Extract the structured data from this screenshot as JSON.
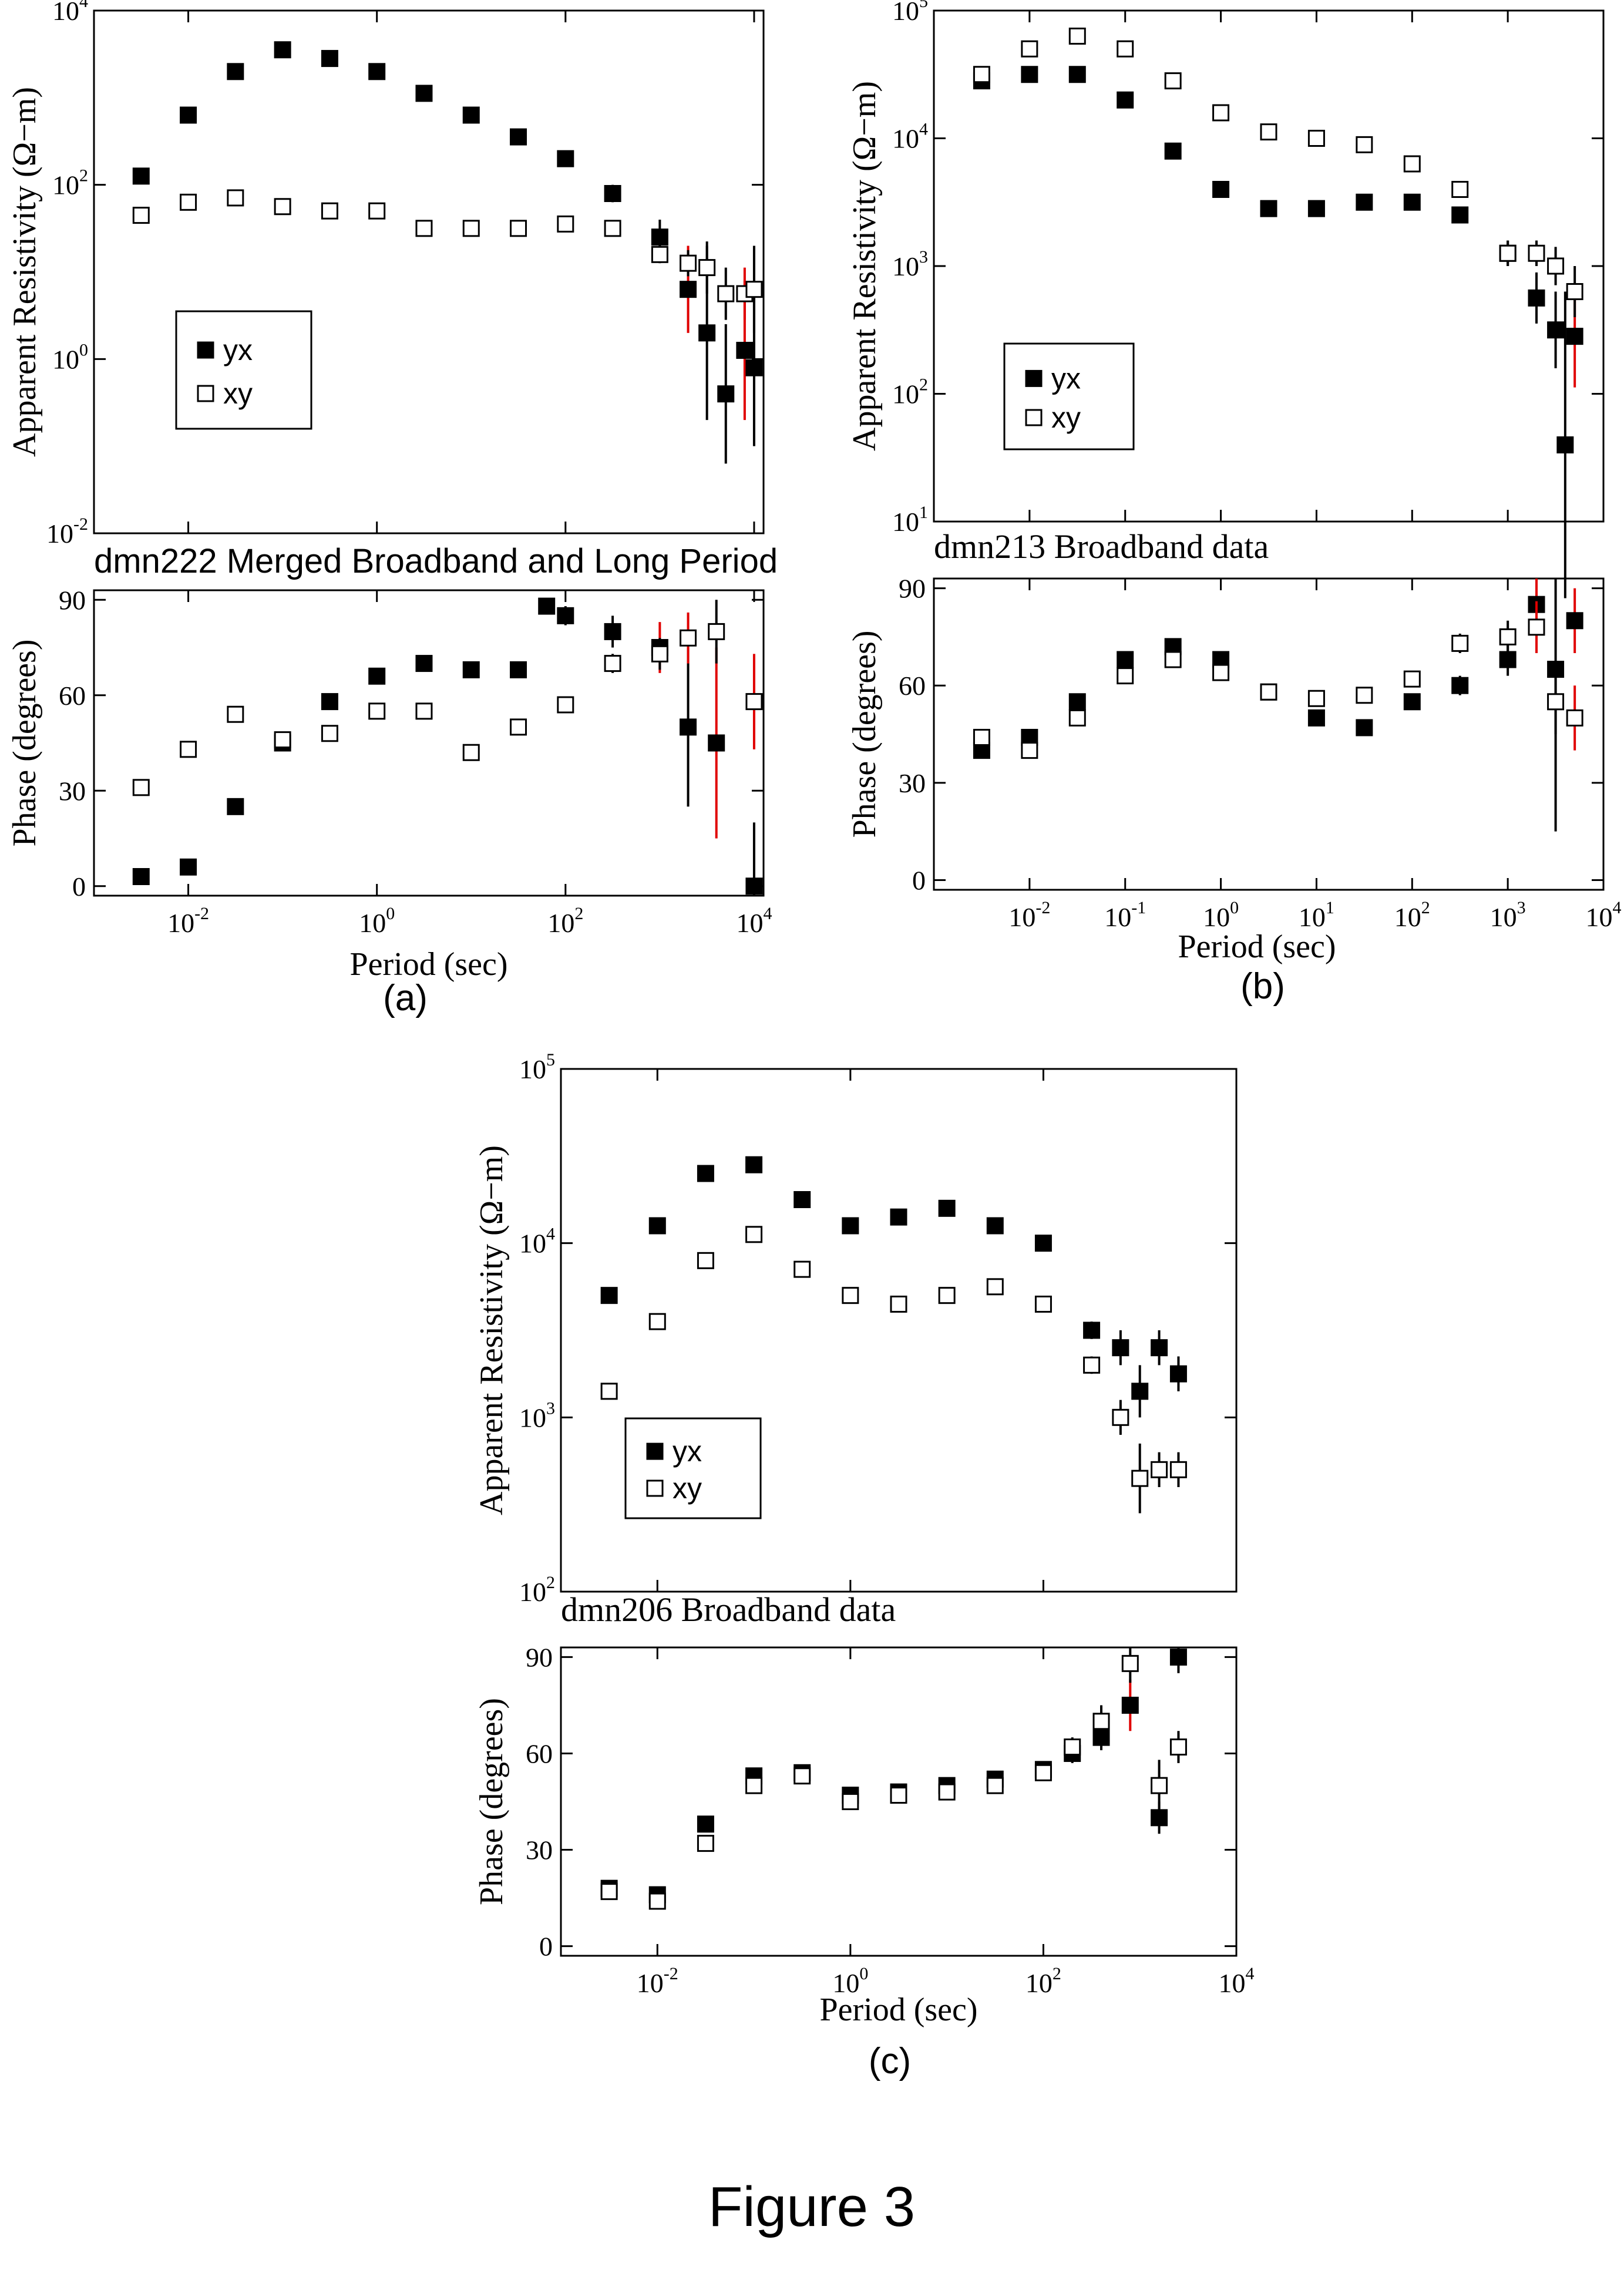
{
  "figure_caption": "Figure 3",
  "legend": {
    "yx": "yx",
    "xy": "xy"
  },
  "colors": {
    "yx_fill": "#000000",
    "xy_fill": "#ffffff",
    "marker_edge": "#000000",
    "error_bar": "#000000",
    "error_bar_alt": "#e00000"
  },
  "chart_data": [
    {
      "id": "a",
      "sub_label": "(a)",
      "title": "dmn222 Merged Broadband and Long Period",
      "xlabel": "Period (sec)",
      "xscale": "log",
      "xlim_log10": [
        -3.0,
        4.1
      ],
      "x_ticks": [
        {
          "base": "10",
          "exp": "-2"
        },
        {
          "base": "10",
          "exp": "0"
        },
        {
          "base": "10",
          "exp": "2"
        },
        {
          "base": "10",
          "exp": "4"
        }
      ],
      "rho": {
        "type": "scatter",
        "ylabel": "Apparent Resistivity (Ω−m)",
        "yscale": "log",
        "ylim_log10": [
          -2,
          4
        ],
        "y_ticks": [
          {
            "base": "10",
            "exp": "-2"
          },
          {
            "base": "10",
            "exp": "0"
          },
          {
            "base": "10",
            "exp": "2"
          },
          {
            "base": "10",
            "exp": "4"
          }
        ],
        "legend_position": "lower-left",
        "series": [
          {
            "name": "yx",
            "marker": "filled-square",
            "x_log10": [
              -2.5,
              -2.0,
              -1.5,
              -1.0,
              -0.5,
              0.0,
              0.5,
              1.0,
              1.5,
              2.0,
              2.5,
              3.0,
              3.3,
              3.5,
              3.7,
              3.9,
              4.0
            ],
            "y_log10": [
              2.1,
              2.8,
              3.3,
              3.55,
              3.45,
              3.3,
              3.05,
              2.8,
              2.55,
              2.3,
              1.9,
              1.4,
              0.8,
              0.3,
              -0.4,
              0.1,
              -0.1
            ],
            "err_log10": [
              0.05,
              0.05,
              0.05,
              0.05,
              0.05,
              0.05,
              0.05,
              0.05,
              0.05,
              0.05,
              0.1,
              0.2,
              0.5,
              1.0,
              0.8,
              0.8,
              0.9
            ]
          },
          {
            "name": "xy",
            "marker": "open-square",
            "x_log10": [
              -2.5,
              -2.0,
              -1.5,
              -1.0,
              -0.5,
              0.0,
              0.5,
              1.0,
              1.5,
              2.0,
              2.5,
              3.0,
              3.3,
              3.5,
              3.7,
              3.9,
              4.0
            ],
            "y_log10": [
              1.65,
              1.8,
              1.85,
              1.75,
              1.7,
              1.7,
              1.5,
              1.5,
              1.5,
              1.55,
              1.5,
              1.2,
              1.1,
              1.05,
              0.75,
              0.75,
              0.8
            ],
            "err_log10": [
              0.03,
              0.03,
              0.03,
              0.03,
              0.03,
              0.03,
              0.03,
              0.03,
              0.03,
              0.03,
              0.05,
              0.1,
              0.15,
              0.3,
              0.3,
              0.3,
              0.5
            ]
          }
        ]
      },
      "phase": {
        "type": "scatter",
        "ylabel": "Phase (degrees)",
        "yscale": "linear",
        "ylim": [
          -3,
          93
        ],
        "y_ticks": [
          "0",
          "30",
          "60",
          "90"
        ],
        "series": [
          {
            "name": "yx",
            "marker": "filled-square",
            "x_log10": [
              -2.5,
              -2.0,
              -1.5,
              -1.0,
              -0.5,
              0.0,
              0.5,
              1.0,
              1.5,
              1.8,
              2.0,
              2.5,
              3.0,
              3.3,
              3.6,
              4.0
            ],
            "y": [
              3,
              6,
              25,
              45,
              58,
              66,
              70,
              68,
              68,
              88,
              85,
              80,
              75,
              50,
              45,
              0
            ],
            "err": [
              1,
              1,
              1,
              1,
              1,
              1,
              1,
              1,
              2,
              2,
              3,
              5,
              8,
              25,
              30,
              20
            ]
          },
          {
            "name": "xy",
            "marker": "open-square",
            "x_log10": [
              -2.5,
              -2.0,
              -1.5,
              -1.0,
              -0.5,
              0.0,
              0.5,
              1.0,
              1.5,
              2.0,
              2.5,
              3.0,
              3.3,
              3.6,
              4.0
            ],
            "y": [
              31,
              43,
              54,
              46,
              48,
              55,
              55,
              42,
              50,
              57,
              70,
              73,
              78,
              80,
              58
            ],
            "err": [
              1,
              1,
              1,
              1,
              1,
              1,
              1,
              1,
              1,
              2,
              3,
              5,
              8,
              10,
              15
            ]
          }
        ]
      }
    },
    {
      "id": "b",
      "sub_label": "(b)",
      "title": "dmn213 Broadband data",
      "xlabel": "Period (sec)",
      "xscale": "log",
      "xlim_log10": [
        -3.0,
        4.0
      ],
      "x_ticks": [
        {
          "base": "10",
          "exp": "-2"
        },
        {
          "base": "10",
          "exp": "-1"
        },
        {
          "base": "10",
          "exp": "0"
        },
        {
          "base": "10",
          "exp": "1"
        },
        {
          "base": "10",
          "exp": "2"
        },
        {
          "base": "10",
          "exp": "3"
        },
        {
          "base": "10",
          "exp": "4"
        }
      ],
      "rho": {
        "type": "scatter",
        "ylabel": "Apparent Resistivity (Ω−m)",
        "yscale": "log",
        "ylim_log10": [
          1,
          5
        ],
        "y_ticks": [
          {
            "base": "10",
            "exp": "1"
          },
          {
            "base": "10",
            "exp": "2"
          },
          {
            "base": "10",
            "exp": "3"
          },
          {
            "base": "10",
            "exp": "4"
          },
          {
            "base": "10",
            "exp": "5"
          }
        ],
        "legend_position": "lower-left",
        "series": [
          {
            "name": "yx",
            "marker": "filled-square",
            "x_log10": [
              -2.5,
              -2.0,
              -1.5,
              -1.0,
              -0.5,
              0.0,
              0.5,
              1.0,
              1.5,
              2.0,
              2.5,
              3.0,
              3.3,
              3.5,
              3.6,
              3.7
            ],
            "y_log10": [
              4.45,
              4.5,
              4.5,
              4.3,
              3.9,
              3.6,
              3.45,
              3.45,
              3.5,
              3.5,
              3.4,
              3.1,
              2.75,
              2.5,
              1.6,
              2.45
            ],
            "err_log10": [
              0.02,
              0.02,
              0.02,
              0.02,
              0.02,
              0.02,
              0.02,
              0.02,
              0.02,
              0.03,
              0.05,
              0.1,
              0.2,
              0.3,
              1.2,
              0.4
            ]
          },
          {
            "name": "xy",
            "marker": "open-square",
            "x_log10": [
              -2.5,
              -2.0,
              -1.5,
              -1.0,
              -0.5,
              0.0,
              0.5,
              1.0,
              1.5,
              2.0,
              2.5,
              3.0,
              3.3,
              3.5,
              3.7
            ],
            "y_log10": [
              4.5,
              4.7,
              4.8,
              4.7,
              4.45,
              4.2,
              4.05,
              4.0,
              3.95,
              3.8,
              3.6,
              3.1,
              3.1,
              3.0,
              2.8
            ],
            "err_log10": [
              0.02,
              0.02,
              0.02,
              0.02,
              0.02,
              0.02,
              0.02,
              0.02,
              0.02,
              0.03,
              0.05,
              0.1,
              0.1,
              0.15,
              0.2
            ]
          }
        ]
      },
      "phase": {
        "type": "scatter",
        "ylabel": "Phase (degrees)",
        "yscale": "linear",
        "ylim": [
          -3,
          93
        ],
        "y_ticks": [
          "0",
          "30",
          "60",
          "90"
        ],
        "series": [
          {
            "name": "yx",
            "marker": "filled-square",
            "x_log10": [
              -2.5,
              -2.0,
              -1.5,
              -1.0,
              -0.5,
              0.0,
              0.5,
              1.0,
              1.5,
              2.0,
              2.5,
              3.0,
              3.3,
              3.5,
              3.7
            ],
            "y": [
              40,
              44,
              55,
              68,
              72,
              68,
              58,
              50,
              47,
              55,
              60,
              68,
              85,
              65,
              80
            ],
            "err": [
              1,
              1,
              1,
              1,
              1,
              1,
              1,
              1,
              1,
              2,
              3,
              5,
              8,
              50,
              10
            ]
          },
          {
            "name": "xy",
            "marker": "open-square",
            "x_log10": [
              -2.5,
              -2.0,
              -1.5,
              -1.0,
              -0.5,
              0.0,
              0.5,
              1.0,
              1.5,
              2.0,
              2.5,
              3.0,
              3.3,
              3.5,
              3.7
            ],
            "y": [
              44,
              40,
              50,
              63,
              68,
              64,
              58,
              56,
              57,
              62,
              73,
              75,
              78,
              55,
              50
            ],
            "err": [
              1,
              1,
              1,
              1,
              1,
              1,
              1,
              1,
              1,
              2,
              3,
              5,
              8,
              10,
              10
            ]
          }
        ]
      }
    },
    {
      "id": "c",
      "sub_label": "(c)",
      "title": "dmn206 Broadband data",
      "xlabel": "Period (sec)",
      "xscale": "log",
      "xlim_log10": [
        -3.0,
        4.0
      ],
      "x_ticks": [
        {
          "base": "10",
          "exp": "-2"
        },
        {
          "base": "10",
          "exp": "0"
        },
        {
          "base": "10",
          "exp": "2"
        },
        {
          "base": "10",
          "exp": "4"
        }
      ],
      "rho": {
        "type": "scatter",
        "ylabel": "Apparent Resistivity (Ω−m)",
        "yscale": "log",
        "ylim_log10": [
          2,
          5
        ],
        "y_ticks": [
          {
            "base": "10",
            "exp": "2"
          },
          {
            "base": "10",
            "exp": "3"
          },
          {
            "base": "10",
            "exp": "4"
          },
          {
            "base": "10",
            "exp": "5"
          }
        ],
        "legend_position": "lower-left",
        "series": [
          {
            "name": "yx",
            "marker": "filled-square",
            "x_log10": [
              -2.5,
              -2.0,
              -1.5,
              -1.0,
              -0.5,
              0.0,
              0.5,
              1.0,
              1.5,
              2.0,
              2.5,
              2.8,
              3.0,
              3.2,
              3.4
            ],
            "y_log10": [
              3.7,
              4.1,
              4.4,
              4.45,
              4.25,
              4.1,
              4.15,
              4.2,
              4.1,
              4.0,
              3.5,
              3.4,
              3.15,
              3.4,
              3.25
            ],
            "err_log10": [
              0.02,
              0.02,
              0.02,
              0.02,
              0.02,
              0.02,
              0.02,
              0.02,
              0.02,
              0.03,
              0.05,
              0.1,
              0.15,
              0.1,
              0.1
            ]
          },
          {
            "name": "xy",
            "marker": "open-square",
            "x_log10": [
              -2.5,
              -2.0,
              -1.5,
              -1.0,
              -0.5,
              0.0,
              0.5,
              1.0,
              1.5,
              2.0,
              2.5,
              2.8,
              3.0,
              3.2,
              3.4
            ],
            "y_log10": [
              3.15,
              3.55,
              3.9,
              4.05,
              3.85,
              3.7,
              3.65,
              3.7,
              3.75,
              3.65,
              3.3,
              3.0,
              2.65,
              2.7,
              2.7
            ],
            "err_log10": [
              0.02,
              0.02,
              0.02,
              0.02,
              0.02,
              0.02,
              0.02,
              0.02,
              0.02,
              0.03,
              0.05,
              0.1,
              0.2,
              0.1,
              0.1
            ]
          }
        ]
      },
      "phase": {
        "type": "scatter",
        "ylabel": "Phase (degrees)",
        "yscale": "linear",
        "ylim": [
          -3,
          93
        ],
        "y_ticks": [
          "0",
          "30",
          "60",
          "90"
        ],
        "series": [
          {
            "name": "yx",
            "marker": "filled-square",
            "x_log10": [
              -2.5,
              -2.0,
              -1.5,
              -1.0,
              -0.5,
              0.0,
              0.5,
              1.0,
              1.5,
              2.0,
              2.3,
              2.6,
              2.9,
              3.2,
              3.4
            ],
            "y": [
              18,
              16,
              38,
              53,
              54,
              47,
              48,
              50,
              52,
              55,
              60,
              65,
              75,
              40,
              90
            ],
            "err": [
              1,
              1,
              1,
              1,
              1,
              1,
              1,
              1,
              1,
              2,
              3,
              4,
              8,
              5,
              5
            ]
          },
          {
            "name": "xy",
            "marker": "open-square",
            "x_log10": [
              -2.5,
              -2.0,
              -1.5,
              -1.0,
              -0.5,
              0.0,
              0.5,
              1.0,
              1.5,
              2.0,
              2.3,
              2.6,
              2.9,
              3.2,
              3.4
            ],
            "y": [
              17,
              14,
              32,
              50,
              53,
              45,
              47,
              48,
              50,
              54,
              62,
              70,
              88,
              50,
              62
            ],
            "err": [
              1,
              1,
              1,
              1,
              1,
              1,
              1,
              1,
              1,
              2,
              3,
              5,
              6,
              8,
              5
            ]
          }
        ]
      }
    }
  ]
}
